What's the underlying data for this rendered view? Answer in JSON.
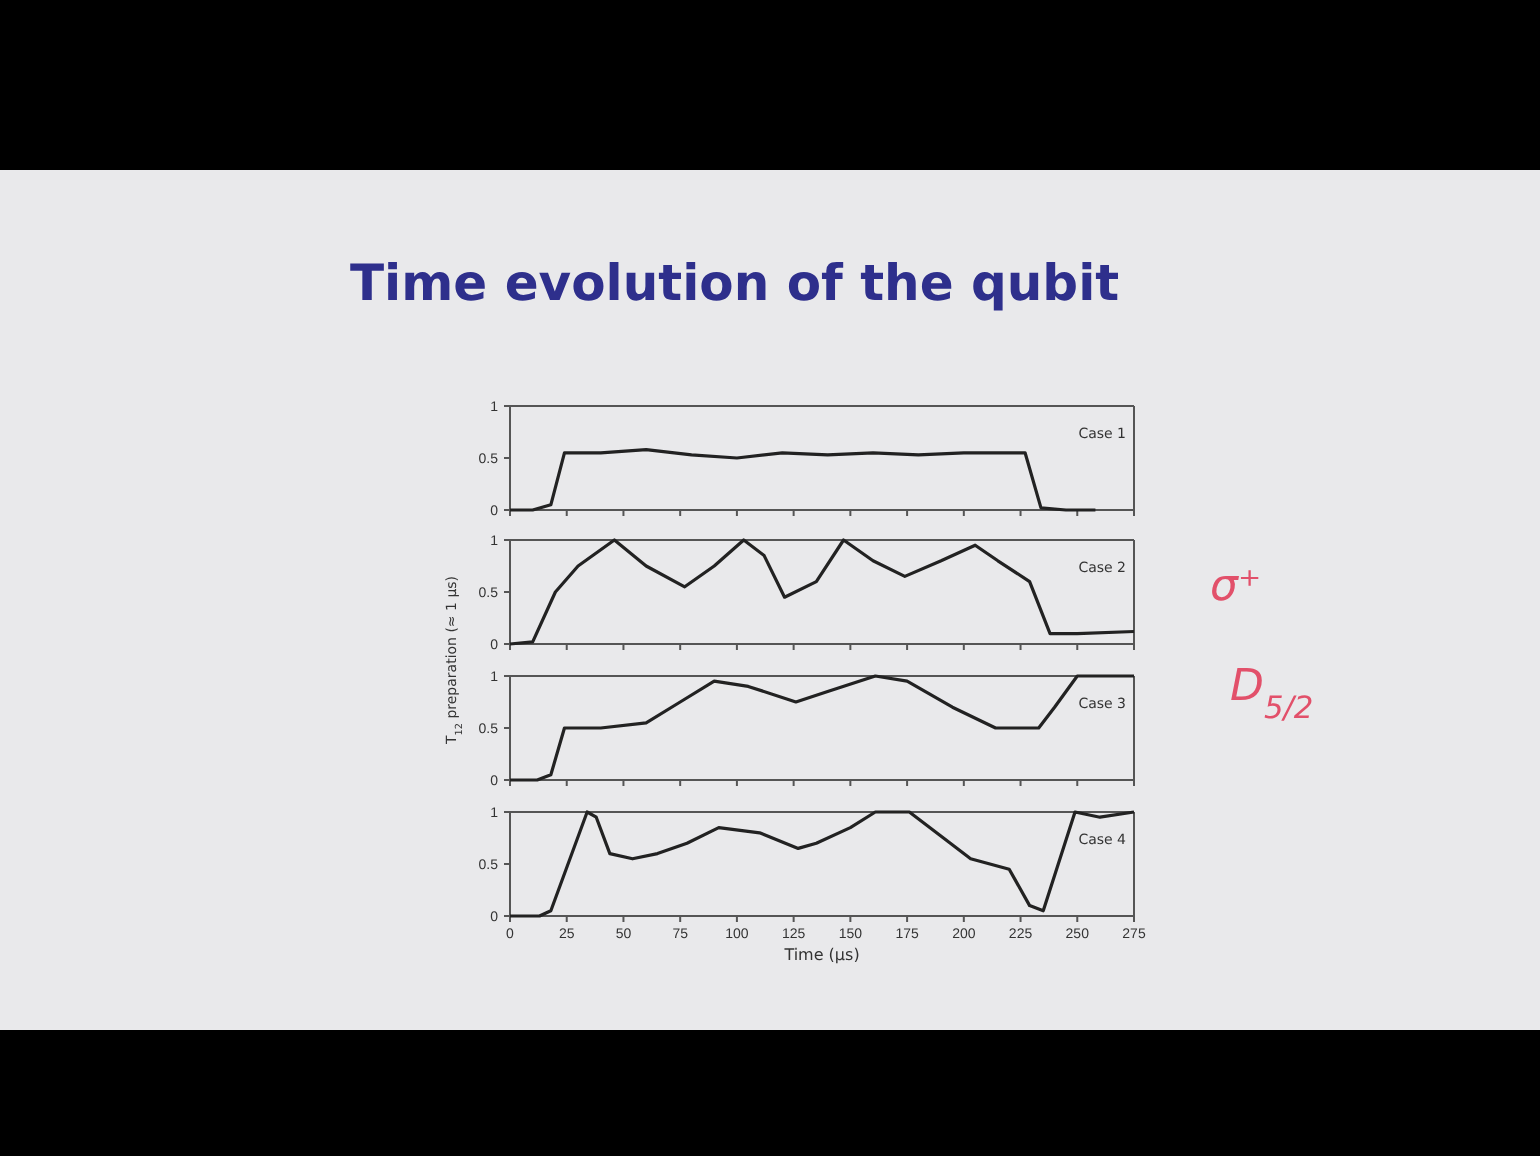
{
  "chart_data": [
    {
      "type": "line",
      "title": "Time evolution of the qubit",
      "annotations": [
        "Case 1"
      ],
      "x": [
        0,
        10,
        18,
        24,
        40,
        60,
        80,
        100,
        120,
        140,
        160,
        180,
        200,
        220,
        227,
        234,
        245,
        258
      ],
      "series": [
        {
          "color": "#222222",
          "values": [
            0,
            0,
            0.05,
            0.55,
            0.55,
            0.58,
            0.53,
            0.5,
            0.55,
            0.53,
            0.55,
            0.53,
            0.55,
            0.55,
            0.55,
            0.02,
            0,
            0
          ]
        }
      ],
      "xlim": [
        0,
        275
      ],
      "ylim": [
        0,
        1
      ],
      "xticks": [
        0,
        25,
        50,
        75,
        100,
        125,
        150,
        175,
        200,
        225,
        250,
        275
      ],
      "yticks": [
        0,
        0.5,
        1
      ],
      "tick_labels": "y",
      "grid": false,
      "marker": "none",
      "line_style": "solid"
    },
    {
      "type": "line",
      "ylabel": "T$_{12}$ preparation (≈ 1 μs)",
      "annotations": [
        "Case 2",
        "σ⁺",
        "D$_{5/2}$"
      ],
      "x": [
        0,
        10,
        20,
        30,
        46,
        60,
        77,
        90,
        103,
        112,
        121,
        135,
        147,
        160,
        174,
        190,
        205,
        215,
        229,
        238,
        250,
        275
      ],
      "series": [
        {
          "color": "#222222",
          "values": [
            0,
            0.02,
            0.5,
            0.75,
            1,
            0.75,
            0.55,
            0.75,
            1,
            0.85,
            0.45,
            0.6,
            1,
            0.8,
            0.65,
            0.8,
            0.95,
            0.8,
            0.6,
            0.1,
            0.1,
            0.12
          ]
        }
      ],
      "xlim": [
        0,
        275
      ],
      "ylim": [
        0,
        1
      ],
      "xticks": [
        0,
        25,
        50,
        75,
        100,
        125,
        150,
        175,
        200,
        225,
        250,
        275
      ],
      "yticks": [
        0,
        0.5,
        1
      ],
      "tick_labels": "y",
      "grid": false,
      "marker": "none",
      "line_style": "solid"
    },
    {
      "type": "line",
      "annotations": [
        "Case 3"
      ],
      "x": [
        0,
        12,
        18,
        24,
        40,
        60,
        75,
        90,
        105,
        126,
        140,
        161,
        175,
        195,
        214,
        233,
        240,
        250,
        275
      ],
      "series": [
        {
          "color": "#222222",
          "values": [
            0,
            0,
            0.05,
            0.5,
            0.5,
            0.55,
            0.75,
            0.95,
            0.9,
            0.75,
            0.85,
            1,
            0.95,
            0.7,
            0.5,
            0.5,
            0.7,
            1,
            1
          ]
        }
      ],
      "xlim": [
        0,
        275
      ],
      "ylim": [
        0,
        1
      ],
      "xticks": [
        0,
        25,
        50,
        75,
        100,
        125,
        150,
        175,
        200,
        225,
        250,
        275
      ],
      "yticks": [
        0,
        0.5,
        1
      ],
      "tick_labels": "y",
      "grid": false,
      "marker": "none",
      "line_style": "solid"
    },
    {
      "type": "line",
      "xlabel": "Time (μs)",
      "annotations": [
        "Case 4"
      ],
      "x": [
        0,
        13,
        18,
        34,
        38,
        44,
        54,
        65,
        78,
        92,
        110,
        127,
        135,
        150,
        161,
        176,
        188,
        203,
        220,
        229,
        235,
        249,
        260,
        275
      ],
      "series": [
        {
          "color": "#222222",
          "values": [
            0,
            0,
            0.05,
            1,
            0.95,
            0.6,
            0.55,
            0.6,
            0.7,
            0.85,
            0.8,
            0.65,
            0.7,
            0.85,
            1,
            1,
            0.8,
            0.55,
            0.45,
            0.1,
            0.05,
            1,
            0.95,
            1
          ]
        }
      ],
      "xlim": [
        0,
        275
      ],
      "ylim": [
        0,
        1
      ],
      "xticks": [
        0,
        25,
        50,
        75,
        100,
        125,
        150,
        175,
        200,
        225,
        250,
        275
      ],
      "yticks": [
        0,
        0.5,
        1
      ],
      "grid": false,
      "marker": "none",
      "line_style": "solid"
    }
  ]
}
